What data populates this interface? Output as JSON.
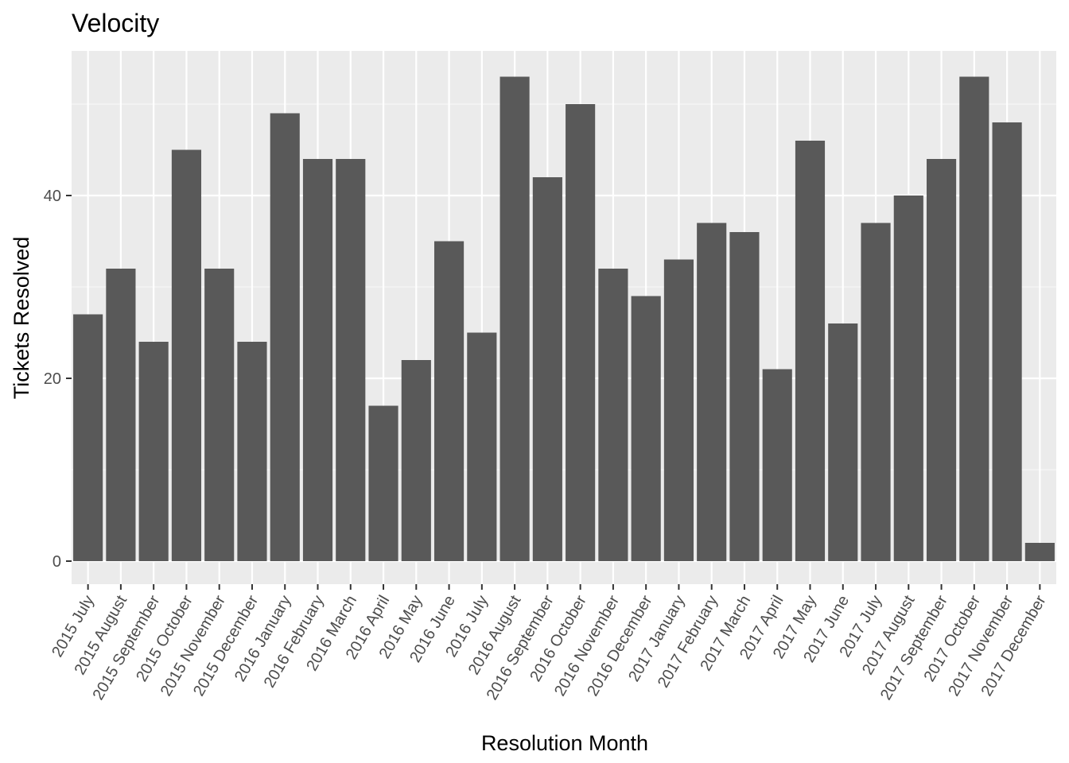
{
  "chart_data": {
    "type": "bar",
    "title": "Velocity",
    "xlabel": "Resolution Month",
    "ylabel": "Tickets Resolved",
    "categories": [
      "2015 July",
      "2015 August",
      "2015 September",
      "2015 October",
      "2015 November",
      "2015 December",
      "2016 January",
      "2016 February",
      "2016 March",
      "2016 April",
      "2016 May",
      "2016 June",
      "2016 July",
      "2016 August",
      "2016 September",
      "2016 October",
      "2016 November",
      "2016 December",
      "2017 January",
      "2017 February",
      "2017 March",
      "2017 April",
      "2017 May",
      "2017 June",
      "2017 July",
      "2017 August",
      "2017 September",
      "2017 October",
      "2017 November",
      "2017 December"
    ],
    "values": [
      27,
      32,
      24,
      45,
      32,
      24,
      49,
      44,
      44,
      17,
      22,
      35,
      25,
      53,
      42,
      50,
      32,
      29,
      33,
      37,
      36,
      21,
      46,
      26,
      37,
      40,
      44,
      53,
      48,
      2
    ],
    "yticks": [
      0,
      20,
      40
    ],
    "ylim": [
      -2.65,
      55.65
    ],
    "grid": true,
    "colors": {
      "bar": "#595959",
      "panel": "#ebebeb",
      "grid_major": "#ffffff",
      "grid_minor": "#f5f5f5",
      "tick": "#333333"
    }
  }
}
